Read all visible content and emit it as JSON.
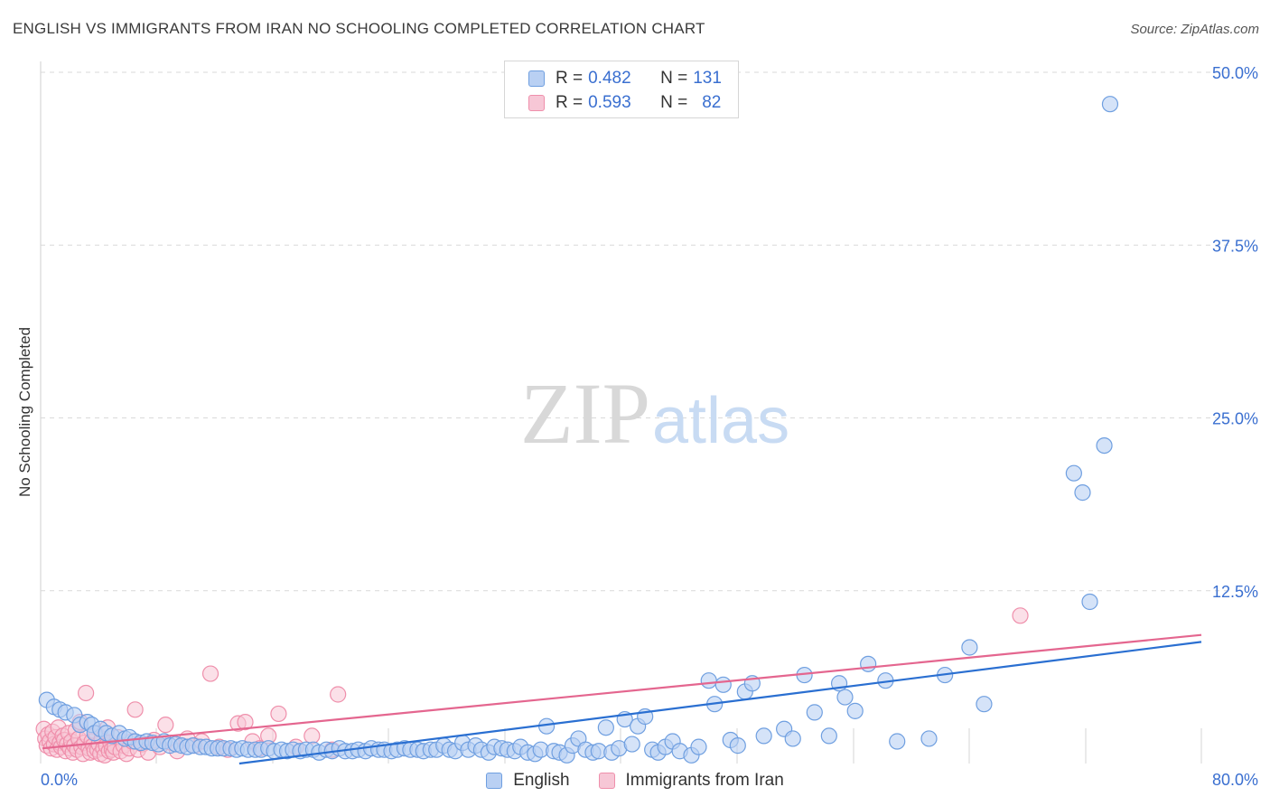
{
  "header": {
    "title": "ENGLISH VS IMMIGRANTS FROM IRAN NO SCHOOLING COMPLETED CORRELATION CHART",
    "source": "Source: ZipAtlas.com"
  },
  "watermark": {
    "zip": "ZIP",
    "atlas": "atlas"
  },
  "legend": {
    "rows": [
      {
        "r_label": "R = ",
        "r_value": "0.482",
        "n_label": "N = ",
        "n_value": "131"
      },
      {
        "r_label": "R = ",
        "r_value": "0.593",
        "n_label": "N = ",
        "n_value": "82"
      }
    ]
  },
  "colors": {
    "english": "#6f9fe0",
    "english_fill": "#b9d0f3",
    "english_line": "#2a6fd1",
    "iran": "#ef8fab",
    "iran_fill": "#f7c7d6",
    "iran_line": "#e4668f",
    "axis_text": "#3a6fd0",
    "grid": "#d9d9d9"
  },
  "chart_data": {
    "type": "scatter",
    "title": "ENGLISH VS IMMIGRANTS FROM IRAN NO SCHOOLING COMPLETED CORRELATION CHART",
    "xlabel": "",
    "ylabel": "No Schooling Completed",
    "xlim": [
      0,
      80
    ],
    "ylim": [
      0,
      50
    ],
    "x_tick_labels": [
      "0.0%",
      "80.0%"
    ],
    "y_ticks": [
      12.5,
      25.0,
      37.5,
      50.0
    ],
    "y_tick_labels": [
      "12.5%",
      "25.0%",
      "37.5%",
      "50.0%"
    ],
    "grid": true,
    "series": [
      {
        "name": "English",
        "r": 0.482,
        "n": 131,
        "trend": [
          [
            0,
            -1.8
          ],
          [
            80,
            8.8
          ]
        ],
        "points": [
          [
            0.3,
            4.6
          ],
          [
            0.8,
            4.1
          ],
          [
            1.2,
            3.9
          ],
          [
            1.6,
            3.7
          ],
          [
            2.2,
            3.5
          ],
          [
            2.6,
            2.8
          ],
          [
            3.1,
            3.0
          ],
          [
            3.4,
            2.8
          ],
          [
            3.6,
            2.2
          ],
          [
            4.0,
            2.5
          ],
          [
            4.4,
            2.2
          ],
          [
            4.8,
            2.0
          ],
          [
            5.3,
            2.2
          ],
          [
            5.7,
            1.8
          ],
          [
            6.0,
            1.9
          ],
          [
            6.4,
            1.6
          ],
          [
            6.8,
            1.5
          ],
          [
            7.2,
            1.6
          ],
          [
            7.6,
            1.5
          ],
          [
            8.0,
            1.4
          ],
          [
            8.4,
            1.6
          ],
          [
            8.8,
            1.3
          ],
          [
            9.2,
            1.4
          ],
          [
            9.6,
            1.3
          ],
          [
            10.0,
            1.2
          ],
          [
            10.4,
            1.3
          ],
          [
            10.9,
            1.2
          ],
          [
            11.3,
            1.2
          ],
          [
            11.7,
            1.1
          ],
          [
            12.1,
            1.1
          ],
          [
            12.5,
            1.1
          ],
          [
            13.0,
            1.1
          ],
          [
            13.4,
            1.0
          ],
          [
            13.8,
            1.1
          ],
          [
            14.2,
            1.0
          ],
          [
            14.7,
            1.0
          ],
          [
            15.1,
            1.0
          ],
          [
            15.6,
            1.1
          ],
          [
            16.0,
            0.9
          ],
          [
            16.5,
            1.0
          ],
          [
            16.9,
            0.9
          ],
          [
            17.3,
            1.0
          ],
          [
            17.8,
            0.9
          ],
          [
            18.2,
            1.0
          ],
          [
            18.7,
            1.0
          ],
          [
            19.1,
            0.8
          ],
          [
            19.6,
            1.0
          ],
          [
            20.0,
            0.9
          ],
          [
            20.5,
            1.1
          ],
          [
            20.9,
            0.9
          ],
          [
            21.4,
            0.9
          ],
          [
            21.8,
            1.0
          ],
          [
            22.3,
            0.9
          ],
          [
            22.7,
            1.1
          ],
          [
            23.2,
            1.0
          ],
          [
            23.6,
            1.0
          ],
          [
            24.1,
            0.9
          ],
          [
            24.5,
            1.0
          ],
          [
            25.0,
            1.1
          ],
          [
            25.4,
            1.0
          ],
          [
            25.9,
            1.0
          ],
          [
            26.3,
            0.9
          ],
          [
            26.8,
            1.0
          ],
          [
            27.2,
            1.0
          ],
          [
            27.7,
            1.3
          ],
          [
            28.1,
            1.0
          ],
          [
            28.5,
            0.9
          ],
          [
            29.0,
            1.5
          ],
          [
            29.4,
            1.0
          ],
          [
            29.9,
            1.3
          ],
          [
            30.3,
            1.0
          ],
          [
            30.8,
            0.8
          ],
          [
            31.2,
            1.2
          ],
          [
            31.7,
            1.1
          ],
          [
            32.1,
            1.0
          ],
          [
            32.6,
            0.9
          ],
          [
            33.0,
            1.2
          ],
          [
            33.5,
            0.8
          ],
          [
            34.0,
            0.7
          ],
          [
            34.4,
            1.0
          ],
          [
            34.8,
            2.7
          ],
          [
            35.3,
            0.9
          ],
          [
            35.7,
            0.8
          ],
          [
            36.2,
            0.6
          ],
          [
            36.6,
            1.3
          ],
          [
            37.0,
            1.8
          ],
          [
            37.5,
            1.0
          ],
          [
            38.0,
            0.8
          ],
          [
            38.4,
            0.9
          ],
          [
            38.9,
            2.6
          ],
          [
            39.3,
            0.8
          ],
          [
            39.8,
            1.1
          ],
          [
            40.2,
            3.2
          ],
          [
            40.7,
            1.4
          ],
          [
            41.1,
            2.7
          ],
          [
            41.6,
            3.4
          ],
          [
            42.1,
            1.0
          ],
          [
            42.5,
            0.8
          ],
          [
            43.0,
            1.2
          ],
          [
            43.5,
            1.6
          ],
          [
            44.0,
            0.9
          ],
          [
            44.8,
            0.6
          ],
          [
            45.3,
            1.2
          ],
          [
            46.0,
            6.0
          ],
          [
            46.4,
            4.3
          ],
          [
            47.0,
            5.7
          ],
          [
            47.5,
            1.7
          ],
          [
            48.0,
            1.3
          ],
          [
            48.5,
            5.2
          ],
          [
            49.0,
            5.8
          ],
          [
            49.8,
            2.0
          ],
          [
            51.2,
            2.5
          ],
          [
            51.8,
            1.8
          ],
          [
            52.6,
            6.4
          ],
          [
            53.3,
            3.7
          ],
          [
            54.3,
            2.0
          ],
          [
            55.0,
            5.8
          ],
          [
            55.4,
            4.8
          ],
          [
            56.1,
            3.8
          ],
          [
            57.0,
            7.2
          ],
          [
            58.2,
            6.0
          ],
          [
            59.0,
            1.6
          ],
          [
            61.2,
            1.8
          ],
          [
            62.3,
            6.4
          ],
          [
            64.0,
            8.4
          ],
          [
            65.0,
            4.3
          ],
          [
            71.2,
            21.0
          ],
          [
            71.8,
            19.6
          ],
          [
            72.3,
            11.7
          ],
          [
            73.3,
            23.0
          ],
          [
            73.7,
            47.7
          ]
        ]
      },
      {
        "name": "Immigrants from Iran",
        "r": 0.593,
        "n": 82,
        "trend": [
          [
            0,
            1.1
          ],
          [
            80,
            9.3
          ]
        ],
        "points": [
          [
            0.1,
            2.5
          ],
          [
            0.2,
            1.8
          ],
          [
            0.3,
            1.3
          ],
          [
            0.4,
            2.1
          ],
          [
            0.5,
            1.6
          ],
          [
            0.6,
            1.1
          ],
          [
            0.7,
            2.3
          ],
          [
            0.8,
            1.4
          ],
          [
            0.9,
            1.9
          ],
          [
            1.0,
            1.0
          ],
          [
            1.1,
            2.6
          ],
          [
            1.2,
            1.5
          ],
          [
            1.3,
            1.2
          ],
          [
            1.4,
            2.0
          ],
          [
            1.5,
            1.7
          ],
          [
            1.6,
            0.9
          ],
          [
            1.7,
            1.4
          ],
          [
            1.8,
            2.2
          ],
          [
            1.9,
            1.1
          ],
          [
            2.0,
            1.6
          ],
          [
            2.1,
            0.8
          ],
          [
            2.2,
            1.3
          ],
          [
            2.3,
            2.4
          ],
          [
            2.4,
            1.0
          ],
          [
            2.5,
            1.8
          ],
          [
            2.6,
            3.0
          ],
          [
            2.7,
            1.2
          ],
          [
            2.8,
            0.7
          ],
          [
            2.9,
            1.5
          ],
          [
            3.0,
            5.1
          ],
          [
            3.1,
            2.0
          ],
          [
            3.2,
            1.1
          ],
          [
            3.3,
            0.8
          ],
          [
            3.4,
            1.6
          ],
          [
            3.5,
            1.3
          ],
          [
            3.6,
            0.9
          ],
          [
            3.7,
            2.2
          ],
          [
            3.8,
            1.0
          ],
          [
            3.9,
            1.4
          ],
          [
            4.0,
            0.7
          ],
          [
            4.1,
            1.8
          ],
          [
            4.2,
            1.1
          ],
          [
            4.3,
            0.6
          ],
          [
            4.4,
            1.3
          ],
          [
            4.5,
            2.6
          ],
          [
            4.6,
            0.9
          ],
          [
            4.7,
            1.5
          ],
          [
            4.8,
            1.0
          ],
          [
            4.9,
            0.8
          ],
          [
            5.0,
            1.2
          ],
          [
            5.2,
            1.9
          ],
          [
            5.4,
            0.9
          ],
          [
            5.6,
            1.3
          ],
          [
            5.8,
            0.7
          ],
          [
            6.0,
            1.1
          ],
          [
            6.2,
            1.6
          ],
          [
            6.4,
            3.9
          ],
          [
            6.6,
            1.0
          ],
          [
            6.9,
            1.4
          ],
          [
            7.3,
            0.8
          ],
          [
            7.7,
            1.7
          ],
          [
            8.1,
            1.2
          ],
          [
            8.5,
            2.8
          ],
          [
            8.9,
            1.5
          ],
          [
            9.3,
            0.9
          ],
          [
            10.0,
            1.8
          ],
          [
            10.5,
            1.3
          ],
          [
            11.0,
            1.6
          ],
          [
            11.6,
            6.5
          ],
          [
            12.2,
            1.2
          ],
          [
            12.8,
            1.0
          ],
          [
            13.5,
            2.9
          ],
          [
            14.0,
            3.0
          ],
          [
            14.5,
            1.6
          ],
          [
            15.0,
            1.1
          ],
          [
            15.6,
            2.0
          ],
          [
            16.3,
            3.6
          ],
          [
            17.5,
            1.2
          ],
          [
            18.6,
            2.0
          ],
          [
            20.0,
            1.0
          ],
          [
            20.4,
            5.0
          ],
          [
            67.5,
            10.7
          ]
        ]
      }
    ]
  },
  "bottom_legend": {
    "english_label": "English",
    "iran_label": "Immigrants from Iran"
  }
}
